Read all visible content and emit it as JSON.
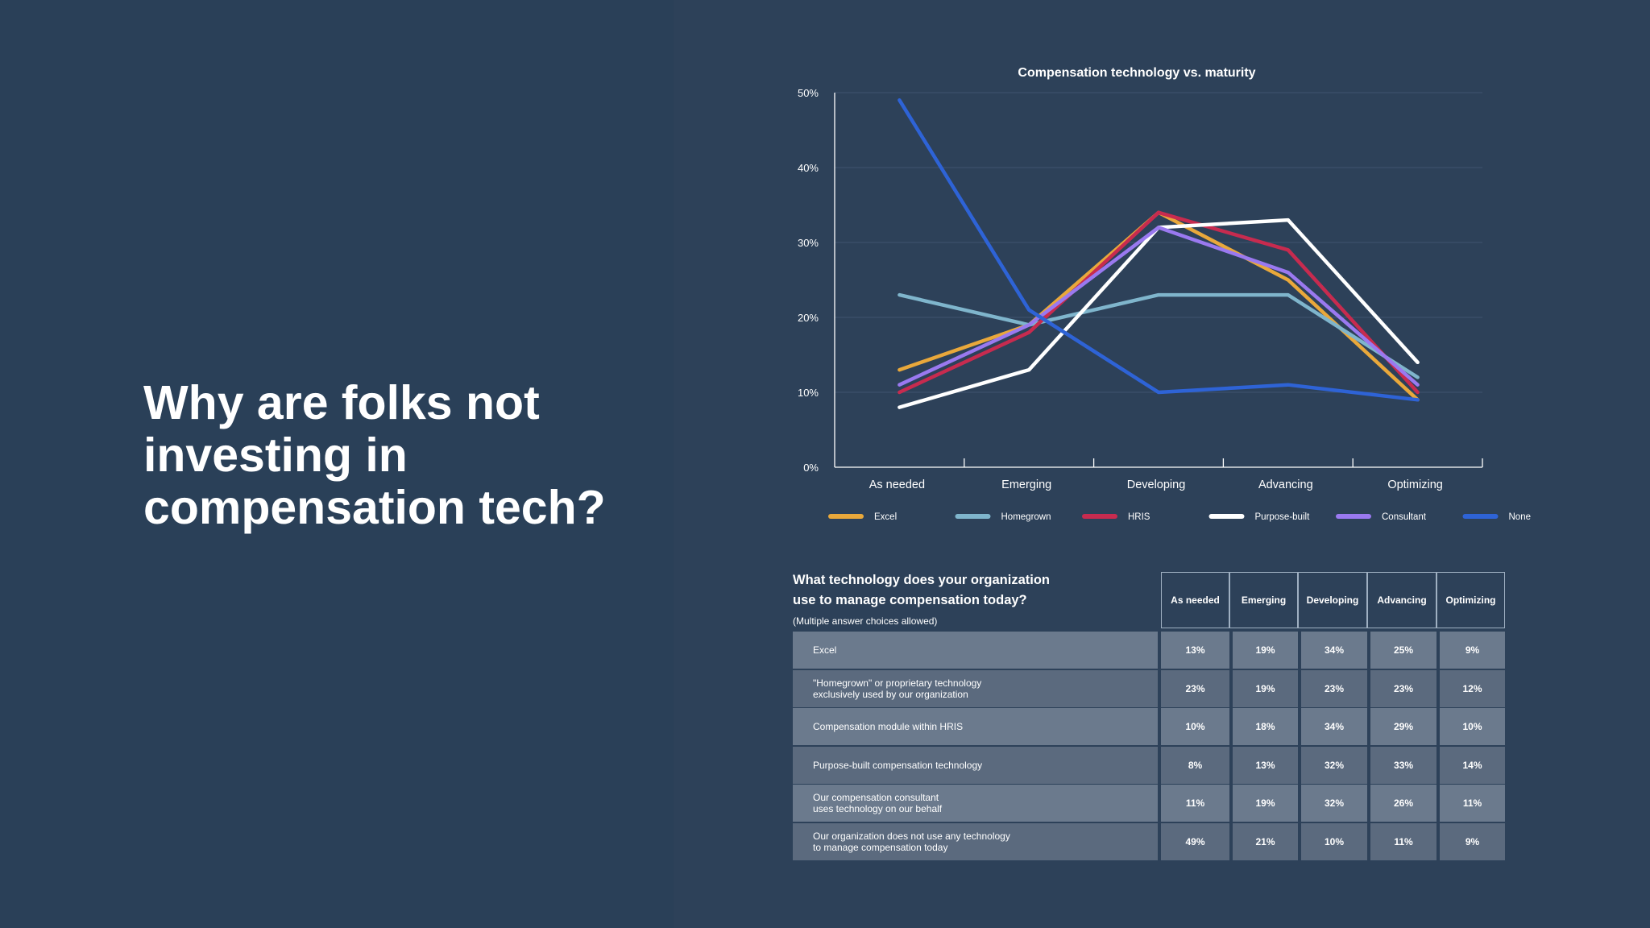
{
  "headline": {
    "lines": [
      "Why are folks not",
      "investing in",
      "compensation tech?"
    ]
  },
  "colors": {
    "background": "#2a4058",
    "panel": "#2d4159",
    "Excel": "#e9a83b",
    "Homegrown": "#7fb5cc",
    "HRIS": "#c72b4f",
    "Purpose-built": "#ffffff",
    "Consultant": "#9a79f0",
    "None": "#2e63d6"
  },
  "chart_data": {
    "type": "line",
    "title": "Compensation technology vs. maturity",
    "categories": [
      "As needed",
      "Emerging",
      "Developing",
      "Advancing",
      "Optimizing"
    ],
    "ylim": [
      0,
      50
    ],
    "yticks": [
      "0%",
      "10%",
      "20%",
      "30%",
      "40%",
      "50%"
    ],
    "grid": true,
    "legend_position": "bottom",
    "series": [
      {
        "name": "Excel",
        "values": [
          13,
          19,
          34,
          25,
          9
        ]
      },
      {
        "name": "Homegrown",
        "values": [
          23,
          19,
          23,
          23,
          12
        ]
      },
      {
        "name": "HRIS",
        "values": [
          10,
          18,
          34,
          29,
          10
        ]
      },
      {
        "name": "Purpose-built",
        "values": [
          8,
          13,
          32,
          33,
          14
        ]
      },
      {
        "name": "Consultant",
        "values": [
          11,
          19,
          32,
          26,
          11
        ]
      },
      {
        "name": "None",
        "values": [
          49,
          21,
          10,
          11,
          9
        ]
      }
    ]
  },
  "table": {
    "question_line1": "What technology does your organization",
    "question_line2": "use to manage compensation today?",
    "note": "(Multiple answer choices allowed)",
    "headers": [
      "As needed",
      "Emerging",
      "Developing",
      "Advancing",
      "Optimizing"
    ],
    "rows": [
      {
        "label": [
          "Excel"
        ],
        "values": [
          "13%",
          "19%",
          "34%",
          "25%",
          "9%"
        ]
      },
      {
        "label": [
          "\"Homegrown\" or proprietary technology",
          "exclusively used by our organization"
        ],
        "values": [
          "23%",
          "19%",
          "23%",
          "23%",
          "12%"
        ]
      },
      {
        "label": [
          "Compensation module within HRIS"
        ],
        "values": [
          "10%",
          "18%",
          "34%",
          "29%",
          "10%"
        ]
      },
      {
        "label": [
          "Purpose-built compensation technology"
        ],
        "values": [
          "8%",
          "13%",
          "32%",
          "33%",
          "14%"
        ]
      },
      {
        "label": [
          "Our compensation consultant",
          "uses technology on our behalf"
        ],
        "values": [
          "11%",
          "19%",
          "32%",
          "26%",
          "11%"
        ]
      },
      {
        "label": [
          "Our organization does not use any technology",
          "to manage compensation today"
        ],
        "values": [
          "49%",
          "21%",
          "10%",
          "11%",
          "9%"
        ]
      }
    ]
  }
}
